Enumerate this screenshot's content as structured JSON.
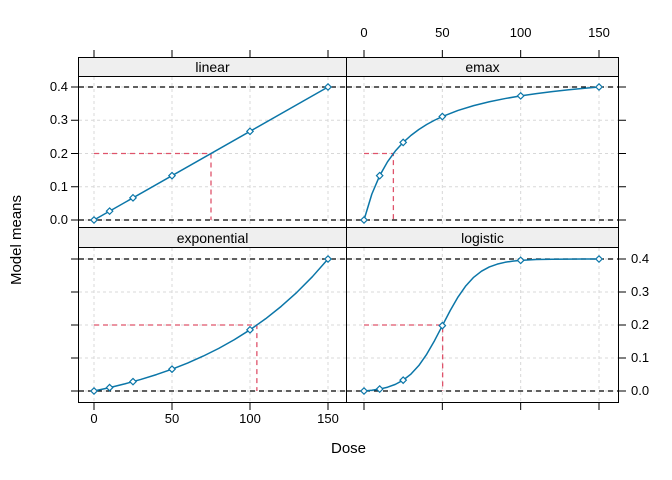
{
  "figure": {
    "xlabel": "Dose",
    "ylabel": "Model means"
  },
  "chart_data": {
    "type": "line",
    "layout": "2x2-lattice",
    "title": "",
    "xlabel": "Dose",
    "ylabel": "Model means",
    "xlim": [
      0,
      150
    ],
    "ylim": [
      0.0,
      0.4
    ],
    "grid": true,
    "x_ticks": [
      0,
      50,
      100,
      150
    ],
    "x_tick_labels": [
      "0",
      "50",
      "100",
      "150"
    ],
    "y_ticks": [
      0.0,
      0.1,
      0.2,
      0.3,
      0.4
    ],
    "y_tick_labels": [
      "0.0",
      "0.1",
      "0.2",
      "0.3",
      "0.4"
    ],
    "doses": [
      0,
      10,
      25,
      50,
      100,
      150
    ],
    "reference_lines_y": [
      0.0,
      0.4
    ],
    "target_effect_y": 0.2,
    "colors": {
      "curve": "#0b76a8",
      "marker_fill": "#ffffff",
      "target_line": "#df536b",
      "gridline": "#d8d8d8",
      "reference_line": "#000000",
      "strip_background": "#efefef",
      "panel_border": "#000000",
      "text": "#000000"
    },
    "panels": [
      {
        "name": "linear",
        "position": "top-left",
        "means": [
          0,
          0.0267,
          0.0667,
          0.1333,
          0.2667,
          0.4
        ],
        "td": 75,
        "curve": [
          [
            0,
            0
          ],
          [
            150,
            0.4
          ]
        ]
      },
      {
        "name": "emax",
        "position": "top-right",
        "means": [
          0,
          0.1333,
          0.2333,
          0.3111,
          0.3733,
          0.4
        ],
        "td": 18.75,
        "curve": [
          [
            0,
            0
          ],
          [
            5,
            0.0778
          ],
          [
            10,
            0.1333
          ],
          [
            15,
            0.175
          ],
          [
            20,
            0.2074
          ],
          [
            25,
            0.2333
          ],
          [
            30,
            0.2545
          ],
          [
            35,
            0.2722
          ],
          [
            40,
            0.2872
          ],
          [
            45,
            0.3
          ],
          [
            50,
            0.3111
          ],
          [
            60,
            0.3294
          ],
          [
            70,
            0.3439
          ],
          [
            80,
            0.3556
          ],
          [
            90,
            0.3652
          ],
          [
            100,
            0.3733
          ],
          [
            110,
            0.3802
          ],
          [
            120,
            0.3862
          ],
          [
            130,
            0.3914
          ],
          [
            140,
            0.396
          ],
          [
            150,
            0.4
          ]
        ]
      },
      {
        "name": "exponential",
        "position": "bottom-left",
        "means": [
          0,
          0.0103,
          0.0284,
          0.0662,
          0.1854,
          0.4
        ],
        "td": 104.4,
        "curve": [
          [
            0,
            0
          ],
          [
            10,
            0.0103
          ],
          [
            20,
            0.0219
          ],
          [
            30,
            0.035
          ],
          [
            40,
            0.0497
          ],
          [
            50,
            0.0662
          ],
          [
            60,
            0.0848
          ],
          [
            70,
            0.1057
          ],
          [
            80,
            0.1292
          ],
          [
            90,
            0.1556
          ],
          [
            100,
            0.1854
          ],
          [
            110,
            0.2188
          ],
          [
            120,
            0.2565
          ],
          [
            130,
            0.2988
          ],
          [
            140,
            0.3464
          ],
          [
            150,
            0.4
          ]
        ]
      },
      {
        "name": "logistic",
        "position": "bottom-right",
        "means": [
          0,
          0.0059,
          0.0329,
          0.198,
          0.396,
          0.4
        ],
        "td": 50.2,
        "curve": [
          [
            0,
            0
          ],
          [
            5,
            0.0023
          ],
          [
            10,
            0.0059
          ],
          [
            15,
            0.0115
          ],
          [
            20,
            0.0201
          ],
          [
            25,
            0.0329
          ],
          [
            30,
            0.0514
          ],
          [
            35,
            0.0772
          ],
          [
            40,
            0.1112
          ],
          [
            45,
            0.1524
          ],
          [
            50,
            0.198
          ],
          [
            55,
            0.2436
          ],
          [
            60,
            0.2848
          ],
          [
            65,
            0.3187
          ],
          [
            70,
            0.3446
          ],
          [
            75,
            0.3631
          ],
          [
            80,
            0.3759
          ],
          [
            85,
            0.3844
          ],
          [
            90,
            0.39
          ],
          [
            95,
            0.3937
          ],
          [
            100,
            0.396
          ],
          [
            110,
            0.3984
          ],
          [
            120,
            0.3994
          ],
          [
            130,
            0.3997
          ],
          [
            140,
            0.3999
          ],
          [
            150,
            0.4
          ]
        ]
      }
    ]
  }
}
